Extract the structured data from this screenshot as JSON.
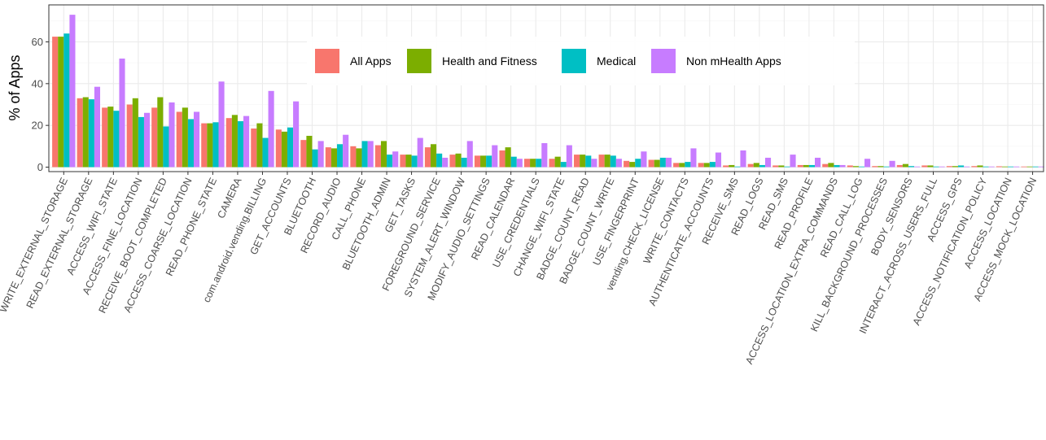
{
  "chart_data": {
    "type": "bar",
    "title": "",
    "xlabel": "",
    "ylabel": "% of Apps",
    "ylim": [
      0,
      75
    ],
    "yticks": [
      0,
      20,
      40,
      60
    ],
    "grid": true,
    "legend_position": "top-center",
    "categories": [
      "WRITE_EXTERNAL_STORAGE",
      "READ_EXTERNAL_STORAGE",
      "ACCESS_WIFI_STATE",
      "ACCESS_FINE_LOCATION",
      "RECEIVE_BOOT_COMPLETED",
      "ACCESS_COARSE_LOCATION",
      "READ_PHONE_STATE",
      "CAMERA",
      "com.android.vending.BILLING",
      "GET_ACCOUNTS",
      "BLUETOOTH",
      "RECORD_AUDIO",
      "CALL_PHONE",
      "BLUETOOTH_ADMIN",
      "GET_TASKS",
      "FOREGROUND_SERVICE",
      "SYSTEM_ALERT_WINDOW",
      "MODIFY_AUDIO_SETTINGS",
      "READ_CALENDAR",
      "USE_CREDENTIALS",
      "CHANGE_WIFI_STATE",
      "BADGE_COUNT_READ",
      "BADGE_COUNT_WRITE",
      "USE_FINGERPRINT",
      "vending.CHECK_LICENSE",
      "WRITE_CONTACTS",
      "AUTHENTICATE_ACCOUNTS",
      "RECEIVE_SMS",
      "READ_LOGS",
      "READ_SMS",
      "READ_PROFILE",
      "ACCESS_LOCATION_EXTRA_COMMANDS",
      "READ_CALL_LOG",
      "KILL_BACKGROUND_PROCESSES",
      "BODY_SENSORS",
      "INTERACT_ACROSS_USERS_FULL",
      "ACCESS_GPS",
      "ACCESS_NOTIFICATION_POLICY",
      "ACCESS_LOCATION",
      "ACCESS_MOCK_LOCATION"
    ],
    "series": [
      {
        "name": "All Apps",
        "color": "#F8766D",
        "values": [
          62.5,
          33,
          28.5,
          30,
          28.5,
          26.5,
          21,
          23.5,
          18.5,
          18,
          13,
          9.5,
          10,
          10.5,
          6,
          9.5,
          6,
          5.5,
          8,
          4,
          4,
          6,
          6,
          3,
          3.5,
          2,
          2,
          0.8,
          1.5,
          0.8,
          1,
          1.5,
          0.8,
          0.5,
          1,
          0.8,
          0.5,
          0.5,
          0.4,
          0.3
        ]
      },
      {
        "name": "Health and Fitness",
        "color": "#7CAE00",
        "values": [
          62.5,
          33.5,
          29,
          33,
          33.5,
          28.5,
          21,
          25,
          21,
          17,
          15,
          9,
          9,
          12.5,
          6,
          11,
          6.5,
          5.5,
          9.5,
          4,
          5,
          6,
          6,
          2.5,
          3.5,
          2,
          2,
          1,
          2,
          0.8,
          1,
          2,
          0.5,
          0.5,
          1.5,
          0.8,
          0.5,
          0.8,
          0.3,
          0.3
        ]
      },
      {
        "name": "Medical",
        "color": "#00BFC4",
        "values": [
          64,
          32.5,
          27,
          24,
          19.5,
          23,
          21.5,
          22,
          14,
          19,
          8.5,
          11,
          12.5,
          6,
          5.5,
          6.5,
          4.5,
          5.5,
          5,
          4,
          2.5,
          5.5,
          5.5,
          4,
          4.5,
          2.5,
          2.5,
          0.3,
          1,
          0.3,
          1,
          1,
          0.3,
          0.3,
          0.5,
          0.3,
          0.8,
          0.3,
          0.3,
          0.3
        ]
      },
      {
        "name": "Non mHealth Apps",
        "color": "#C77CFF",
        "values": [
          73,
          38.5,
          52,
          26,
          31,
          26.5,
          41,
          24.5,
          36.5,
          31.5,
          12.5,
          15.5,
          12.5,
          7.5,
          14,
          4.5,
          12.5,
          10.5,
          4,
          11.5,
          10.5,
          4,
          4,
          7.5,
          4.5,
          9,
          7,
          8,
          4.5,
          6,
          4.5,
          1,
          4,
          3,
          0.3,
          0.3,
          0.3,
          0.3,
          0.3,
          0.3
        ]
      }
    ]
  }
}
